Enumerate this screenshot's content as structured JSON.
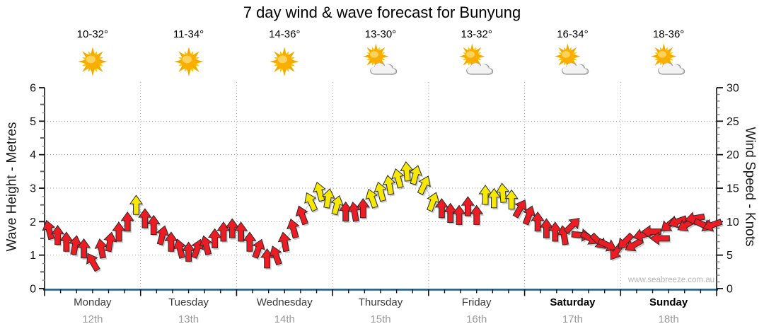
{
  "title": "7 day wind & wave forecast for Bunyung",
  "watermark": "www.seabreeze.com.au",
  "axes": {
    "left_label": "Wave Height - Metres",
    "right_label": "Wind Speed - Knots"
  },
  "colors": {
    "red": "#ed1c24",
    "yellow": "#f6e800",
    "arrow_outline": "#2b2b2b",
    "bottom_axis": "#19598c",
    "grid": "#9a9a9a",
    "date_text": "#9a9a9a"
  },
  "chart_data": {
    "type": "scatter",
    "marker": "wind-arrow",
    "title": "7 day wind & wave forecast for Bunyung",
    "left_axis": {
      "label": "Wave Height - Metres",
      "min": 0,
      "max": 6,
      "major_step": 1,
      "unit": "m"
    },
    "right_axis": {
      "label": "Wind Speed - Knots",
      "min": 0,
      "max": 30,
      "major_step": 5,
      "unit": "knots"
    },
    "grid": "dotted horizontal at 1-5 m, dotted vertical at day boundaries",
    "days": [
      {
        "name": "Monday",
        "date": "12th",
        "temp": "10-32°",
        "icon": "sunny",
        "bold": false
      },
      {
        "name": "Tuesday",
        "date": "13th",
        "temp": "11-34°",
        "icon": "sunny",
        "bold": false
      },
      {
        "name": "Wednesday",
        "date": "14th",
        "temp": "14-36°",
        "icon": "sunny",
        "bold": false
      },
      {
        "name": "Thursday",
        "date": "15th",
        "temp": "13-30°",
        "icon": "partly-cloudy",
        "bold": false
      },
      {
        "name": "Friday",
        "date": "16th",
        "temp": "13-32°",
        "icon": "partly-cloudy",
        "bold": false
      },
      {
        "name": "Saturday",
        "date": "17th",
        "temp": "16-34°",
        "icon": "partly-cloudy",
        "bold": true
      },
      {
        "name": "Sunday",
        "date": "18th",
        "temp": "18-36°",
        "icon": "partly-cloudy",
        "bold": true
      }
    ],
    "arrow_fields": [
      "knots",
      "dir_deg_clockwise_0_is_up",
      "color_code"
    ],
    "color_codes": {
      "r": "red",
      "y": "yellow"
    },
    "arrows_by_day": [
      [
        [
          8.8,
          -15,
          "r"
        ],
        [
          8,
          0,
          "r"
        ],
        [
          7,
          0,
          "r"
        ],
        [
          6.5,
          10,
          "r"
        ],
        [
          6,
          0,
          "r"
        ],
        [
          4,
          -30,
          "r"
        ],
        [
          6,
          -10,
          "r"
        ],
        [
          7,
          10,
          "r"
        ],
        [
          8.5,
          0,
          "r"
        ],
        [
          10,
          0,
          "r"
        ],
        [
          12.5,
          0,
          "y"
        ]
      ],
      [
        [
          10.5,
          0,
          "r"
        ],
        [
          9.5,
          0,
          "r"
        ],
        [
          8,
          15,
          "r"
        ],
        [
          7,
          0,
          "r"
        ],
        [
          6,
          -15,
          "r"
        ],
        [
          5.5,
          0,
          "r"
        ],
        [
          6,
          20,
          "r"
        ],
        [
          6.5,
          -15,
          "r"
        ],
        [
          7.5,
          0,
          "r"
        ],
        [
          8.5,
          0,
          "r"
        ],
        [
          9,
          0,
          "r"
        ]
      ],
      [
        [
          8.5,
          0,
          "r"
        ],
        [
          7,
          0,
          "r"
        ],
        [
          6,
          20,
          "r"
        ],
        [
          4.5,
          0,
          "r"
        ],
        [
          5,
          -20,
          "r"
        ],
        [
          7,
          -10,
          "r"
        ],
        [
          9,
          -15,
          "r"
        ],
        [
          11,
          -20,
          "r"
        ],
        [
          13,
          -25,
          "y"
        ],
        [
          14.5,
          -15,
          "y"
        ],
        [
          13.5,
          10,
          "y"
        ]
      ],
      [
        [
          12.5,
          15,
          "y"
        ],
        [
          11.5,
          0,
          "r"
        ],
        [
          11.5,
          -10,
          "r"
        ],
        [
          12,
          0,
          "r"
        ],
        [
          13.5,
          -20,
          "y"
        ],
        [
          14.5,
          -15,
          "y"
        ],
        [
          15.5,
          -10,
          "y"
        ],
        [
          16.5,
          -15,
          "y"
        ],
        [
          17.5,
          -5,
          "y"
        ],
        [
          17,
          15,
          "y"
        ],
        [
          15.5,
          25,
          "y"
        ]
      ],
      [
        [
          13,
          20,
          "y"
        ],
        [
          12,
          0,
          "r"
        ],
        [
          11.3,
          0,
          "r"
        ],
        [
          11,
          0,
          "r"
        ],
        [
          12.3,
          0,
          "r"
        ],
        [
          11,
          0,
          "r"
        ],
        [
          14,
          0,
          "y"
        ],
        [
          13.5,
          0,
          "y"
        ],
        [
          14.3,
          -5,
          "y"
        ],
        [
          13.3,
          0,
          "y"
        ],
        [
          12,
          30,
          "r"
        ]
      ],
      [
        [
          11,
          20,
          "r"
        ],
        [
          10,
          0,
          "r"
        ],
        [
          9,
          0,
          "r"
        ],
        [
          8.5,
          0,
          "r"
        ],
        [
          8,
          -10,
          "r"
        ],
        [
          9.5,
          45,
          "r"
        ],
        [
          8,
          95,
          "r"
        ],
        [
          7.5,
          120,
          "r"
        ],
        [
          7,
          135,
          "r"
        ],
        [
          6.5,
          115,
          "r"
        ],
        [
          5.5,
          215,
          "r"
        ]
      ],
      [
        [
          7,
          225,
          "r"
        ],
        [
          6.5,
          240,
          "r"
        ],
        [
          8,
          255,
          "r"
        ],
        [
          8.5,
          270,
          "r"
        ],
        [
          7.5,
          270,
          "r"
        ],
        [
          9.5,
          230,
          "r"
        ],
        [
          10,
          250,
          "r"
        ],
        [
          9.5,
          240,
          "r"
        ],
        [
          10.5,
          260,
          "r"
        ],
        [
          9.5,
          115,
          "r"
        ],
        [
          9.5,
          250,
          "r"
        ]
      ]
    ]
  }
}
